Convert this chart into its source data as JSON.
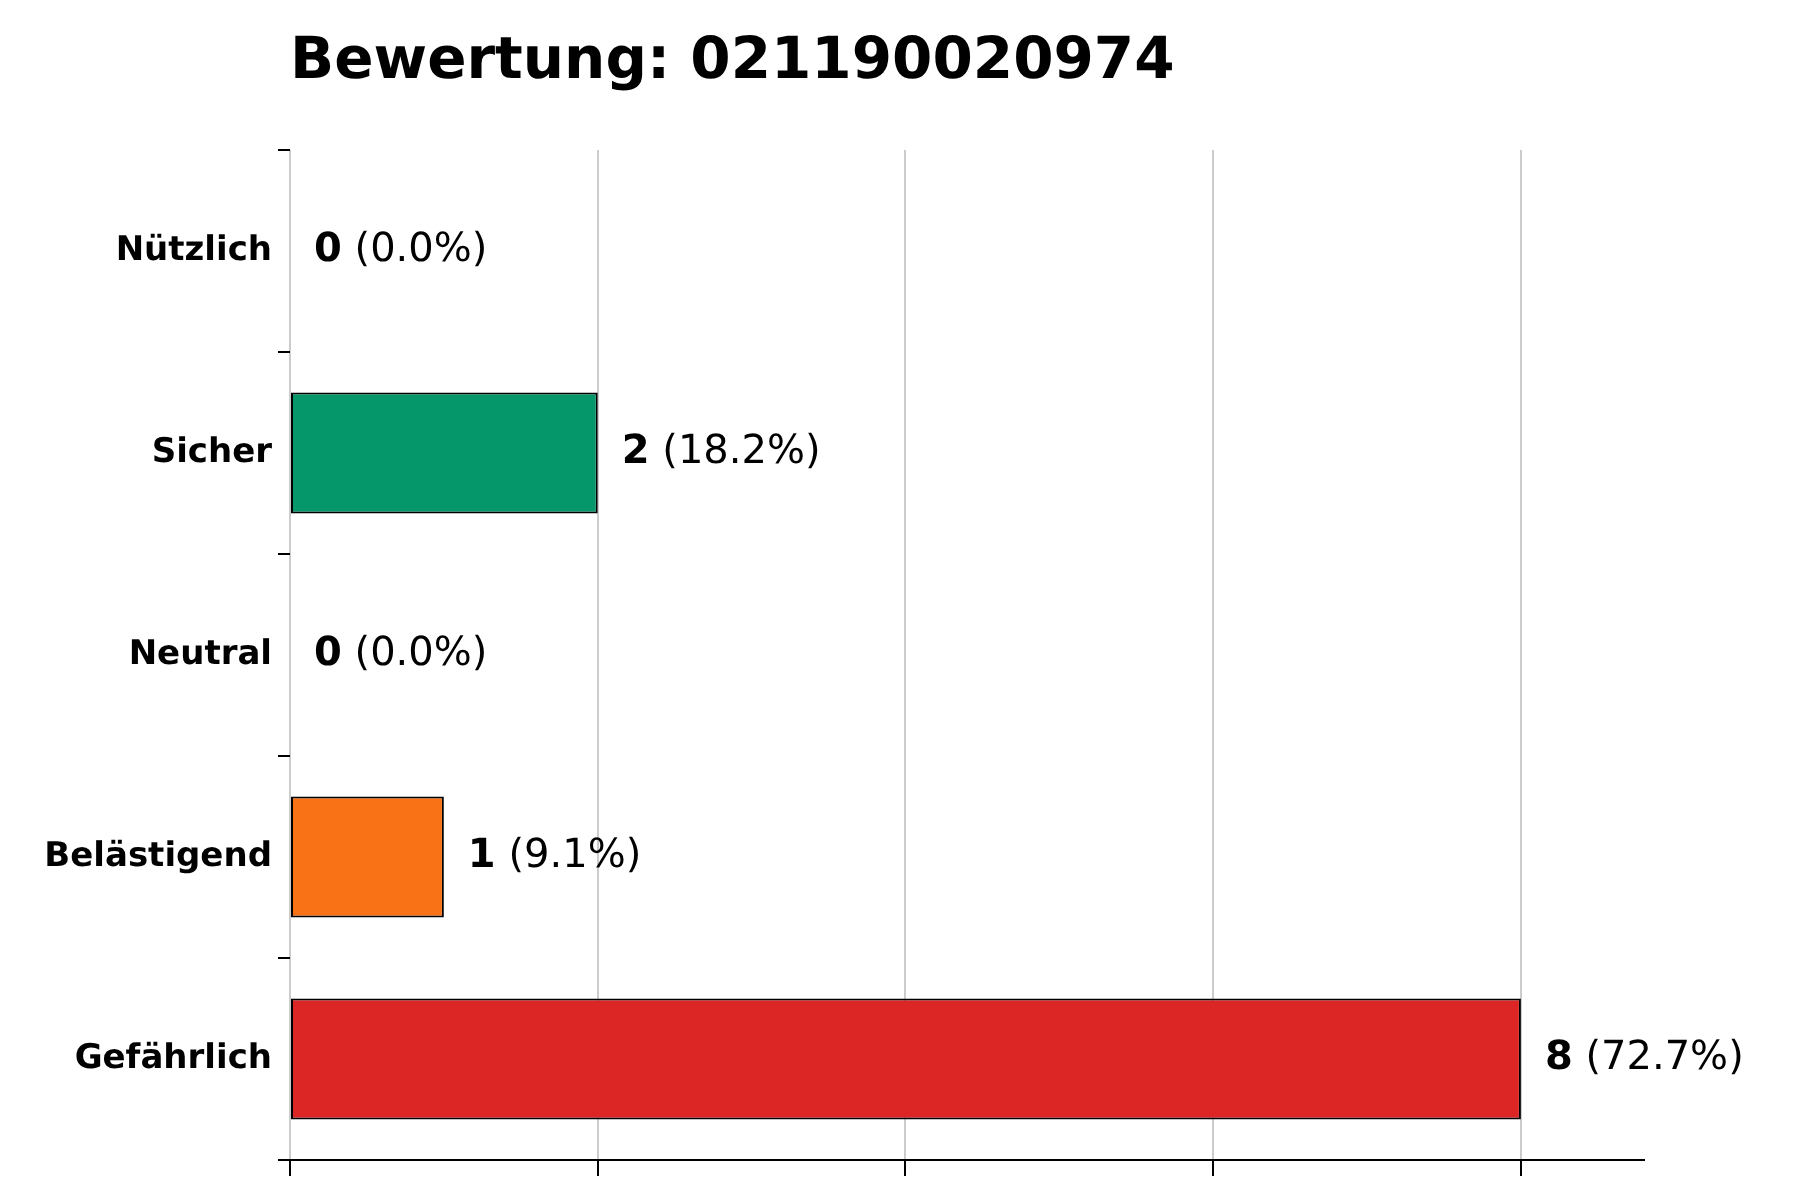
{
  "chart_data": {
    "type": "bar",
    "orientation": "horizontal",
    "title": "Bewertung: 021190020974",
    "categories": [
      "Nützlich",
      "Sicher",
      "Neutral",
      "Belästigend",
      "Gefährlich"
    ],
    "values": [
      0,
      2,
      0,
      1,
      8
    ],
    "colors": [
      "#22c55e",
      "#059669",
      "#9ca3af",
      "#f97316",
      "#dc2626"
    ],
    "value_labels": [
      "0 (0.0%)",
      "2 (18.2%)",
      "0 (0.0%)",
      "1 (9.1%)",
      "8 (72.7%)"
    ],
    "xlim": [
      0,
      8.8
    ],
    "xticks": [
      {
        "value": 0,
        "label": null
      },
      {
        "value": 2,
        "label": null
      },
      {
        "value": 4,
        "label": null
      },
      {
        "value": 6,
        "label": null
      },
      {
        "value": 8,
        "label": null
      }
    ],
    "tick_labels": "y",
    "grid": "x",
    "legend": false
  }
}
